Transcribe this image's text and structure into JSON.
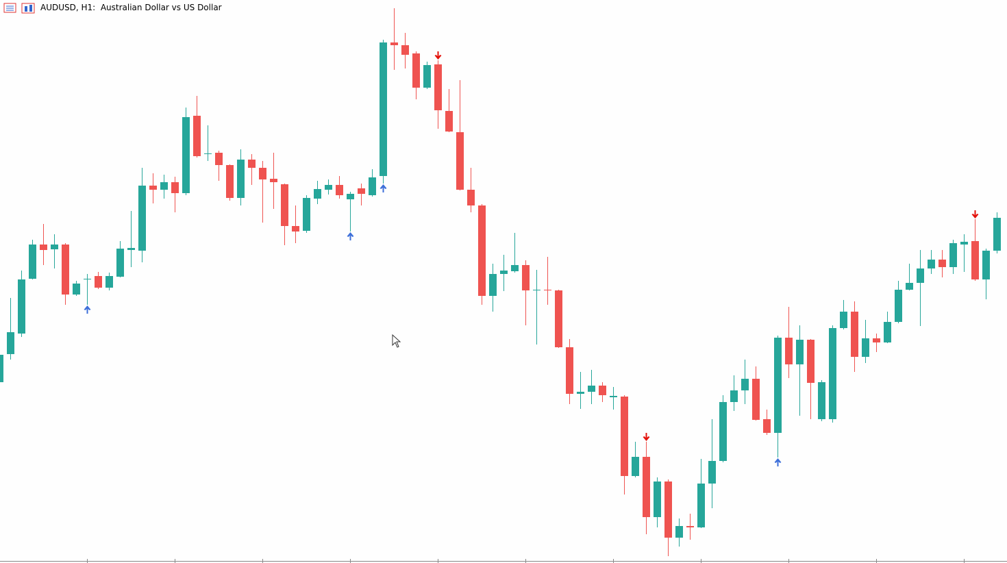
{
  "chart_data": {
    "type": "candlestick",
    "title": "AUDUSD, H1:  Australian Dollar vs US Dollar",
    "up_color": "#26a69a",
    "down_color": "#ef5350",
    "buy_color": "#3d6fd9",
    "sell_color": "#e3120b",
    "ylim": [
      0,
      822
    ],
    "open": [
      264,
      305,
      335,
      415,
      465,
      458,
      465,
      392,
      414,
      419,
      402,
      418,
      457,
      456,
      551,
      545,
      556,
      540,
      653,
      597,
      599,
      581,
      533,
      589,
      577,
      561,
      553,
      492,
      485,
      532,
      545,
      552,
      531,
      547,
      537,
      565,
      760,
      756,
      744,
      694,
      728,
      660,
      629,
      545,
      522,
      390,
      422,
      426,
      435,
      398,
      399,
      398,
      315,
      247,
      250,
      259,
      242,
      243,
      127,
      155,
      67,
      119,
      37,
      54,
      52,
      116,
      149,
      235,
      252,
      269,
      210,
      190,
      329,
      290,
      326,
      210,
      210,
      343,
      367,
      301,
      328,
      322,
      352,
      399,
      409,
      430,
      443,
      432,
      465,
      470,
      414,
      456
    ],
    "high": [
      317,
      387,
      427,
      472,
      495,
      480,
      467,
      412,
      422,
      425,
      424,
      470,
      514,
      577,
      569,
      567,
      564,
      665,
      682,
      639,
      602,
      582,
      604,
      597,
      587,
      599,
      554,
      522,
      537,
      558,
      560,
      565,
      542,
      554,
      575,
      764,
      810,
      774,
      747,
      732,
      734,
      692,
      705,
      577,
      524,
      437,
      450,
      482,
      442,
      428,
      447,
      399,
      327,
      279,
      282,
      264,
      257,
      245,
      177,
      177,
      125,
      122,
      65,
      72,
      152,
      210,
      245,
      274,
      297,
      287,
      224,
      332,
      374,
      347,
      327,
      267,
      347,
      384,
      382,
      355,
      335,
      367,
      412,
      437,
      457,
      457,
      457,
      472,
      480,
      502,
      459,
      512
    ],
    "low": [
      262,
      297,
      330,
      414,
      435,
      430,
      377,
      390,
      377,
      400,
      398,
      417,
      432,
      439,
      525,
      532,
      512,
      537,
      592,
      587,
      558,
      529,
      522,
      552,
      497,
      517,
      464,
      467,
      482,
      524,
      538,
      532,
      484,
      522,
      535,
      554,
      720,
      722,
      677,
      692,
      634,
      629,
      544,
      512,
      377,
      367,
      397,
      424,
      347,
      319,
      377,
      314,
      232,
      225,
      232,
      235,
      224,
      100,
      125,
      42,
      52,
      10,
      24,
      34,
      51,
      80,
      147,
      222,
      232,
      208,
      187,
      154,
      270,
      215,
      210,
      207,
      205,
      341,
      279,
      292,
      308,
      321,
      350,
      398,
      346,
      422,
      417,
      422,
      425,
      412,
      385,
      452
    ],
    "close": [
      304,
      337,
      414,
      465,
      457,
      465,
      392,
      408,
      415,
      402,
      419,
      459,
      460,
      551,
      545,
      556,
      540,
      651,
      594,
      598,
      581,
      533,
      589,
      577,
      560,
      556,
      492,
      484,
      533,
      546,
      552,
      537,
      539,
      539,
      563,
      760,
      756,
      742,
      694,
      727,
      661,
      630,
      545,
      522,
      390,
      422,
      427,
      435,
      398,
      399,
      398,
      315,
      247,
      250,
      259,
      245,
      244,
      127,
      155,
      67,
      119,
      37,
      54,
      52,
      116,
      149,
      235,
      252,
      269,
      209,
      190,
      329,
      290,
      326,
      263,
      264,
      343,
      367,
      301,
      328,
      322,
      352,
      399,
      409,
      430,
      443,
      432,
      467,
      469,
      414,
      456,
      504
    ],
    "buy_signals": [
      8,
      32,
      35,
      71
    ],
    "sell_signals": [
      40,
      59,
      89
    ]
  }
}
